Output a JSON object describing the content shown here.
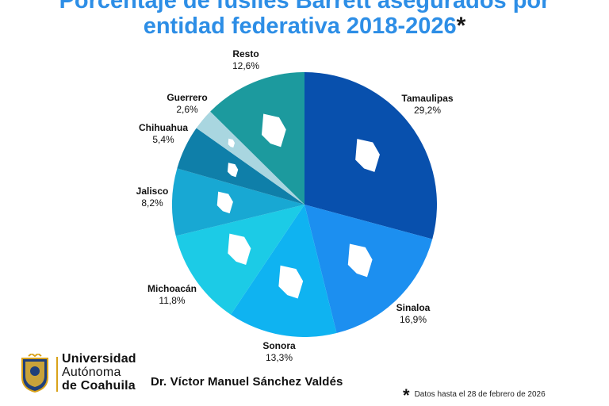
{
  "header": {
    "title_line1": "Porcentaje de fusiles Barrett asegurados por",
    "title_line2": "entidad federativa 2018-2026",
    "asterisk": "*"
  },
  "chart_data": {
    "type": "pie",
    "title": "Porcentaje de fusiles Barrett asegurados por entidad federativa 2018-2026*",
    "slices": [
      {
        "label": "Tamaulipas",
        "value_text": "29,2%",
        "value": 29.2,
        "color": "#0850ad"
      },
      {
        "label": "Sinaloa",
        "value_text": "16,9%",
        "value": 16.9,
        "color": "#1c8ff0"
      },
      {
        "label": "Sonora",
        "value_text": "13,3%",
        "value": 13.3,
        "color": "#0fb3f1"
      },
      {
        "label": "Michoacán",
        "value_text": "11,8%",
        "value": 11.8,
        "color": "#1ccbe6"
      },
      {
        "label": "Jalisco",
        "value_text": "8,2%",
        "value": 8.2,
        "color": "#18a8d3"
      },
      {
        "label": "Chihuahua",
        "value_text": "5,4%",
        "value": 5.4,
        "color": "#0f7fa9"
      },
      {
        "label": "Guerrero",
        "value_text": "2,6%",
        "value": 2.6,
        "color": "#a9d6e0"
      },
      {
        "label": "Resto",
        "value_text": "12,6%",
        "value": 12.6,
        "color": "#1c9a9e"
      }
    ]
  },
  "footer": {
    "university": [
      "Universidad",
      "Autónoma",
      "de Coahuila"
    ],
    "author": "Dr. Víctor Manuel Sánchez Valdés",
    "note_symbol": "*",
    "note": "Datos hasta el 28 de febrero de 2026"
  }
}
